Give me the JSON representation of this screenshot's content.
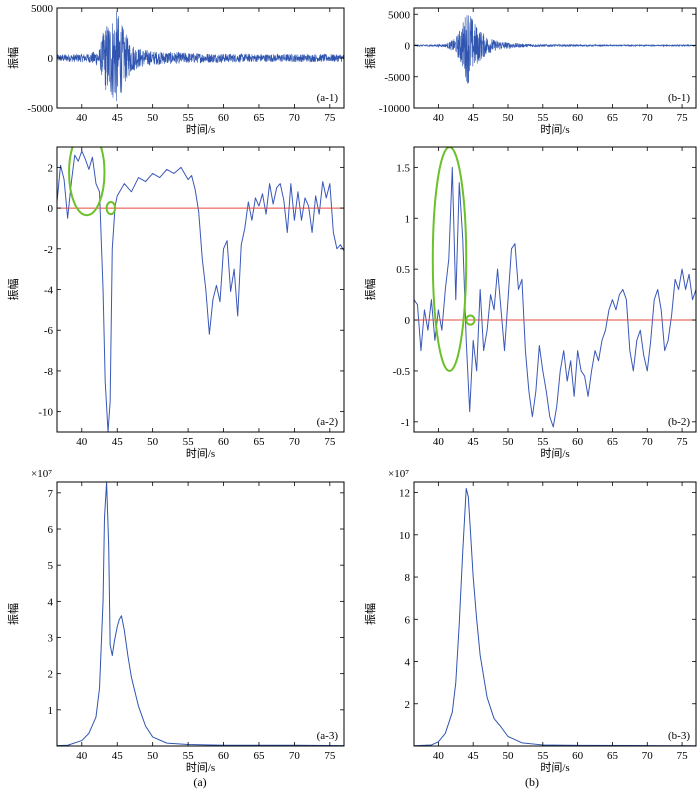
{
  "chart_data": [
    {
      "id": "a1",
      "type": "line",
      "panel_label": "(a-1)",
      "xlabel": "时间/s",
      "ylabel": "振幅",
      "xlim": [
        36.5,
        77
      ],
      "ylim": [
        -5000,
        5000
      ],
      "xticks": [
        40,
        45,
        50,
        55,
        60,
        65,
        70,
        75
      ],
      "yticks": [
        5000,
        0,
        -5000
      ],
      "series": [
        {
          "kind": "seismogram",
          "color": "#2f55b0",
          "envelope": {
            "x": [
              36.5,
              41,
              42.5,
              43.2,
              44,
              45,
              46,
              47,
              48,
              50,
              53,
              56,
              60,
              65,
              70,
              77
            ],
            "amp": [
              350,
              450,
              900,
              3200,
              4000,
              4800,
              2700,
              1500,
              1000,
              700,
              600,
              500,
              450,
              400,
              400,
              380
            ]
          }
        }
      ]
    },
    {
      "id": "b1",
      "type": "line",
      "panel_label": "(b-1)",
      "xlabel": "时间/s",
      "ylabel": "振幅",
      "xlim": [
        36.5,
        77
      ],
      "ylim": [
        -10000,
        6000
      ],
      "xticks": [
        40,
        45,
        50,
        55,
        60,
        65,
        70,
        75
      ],
      "yticks": [
        5000,
        0,
        -5000,
        -10000
      ],
      "series": [
        {
          "kind": "seismogram",
          "color": "#2f55b0",
          "envelope": {
            "x": [
              36.5,
              41,
              42.5,
              43.5,
              44.3,
              45,
              46,
              47,
              48,
              50,
              52,
              55,
              60,
              65,
              77
            ],
            "amp": [
              100,
              250,
              1200,
              3800,
              6500,
              4000,
              2500,
              1500,
              900,
              500,
              300,
              200,
              150,
              120,
              100
            ]
          }
        }
      ]
    },
    {
      "id": "a2",
      "type": "line",
      "panel_label": "(a-2)",
      "xlabel": "时间/s",
      "ylabel": "振幅",
      "xlim": [
        36.5,
        77
      ],
      "ylim": [
        -11,
        3
      ],
      "xticks": [
        40,
        45,
        50,
        55,
        60,
        65,
        70,
        75
      ],
      "yticks": [
        2,
        0,
        -2,
        -4,
        -6,
        -8,
        -10
      ],
      "series": [
        {
          "color": "#3a58b8",
          "x": [
            36.5,
            37,
            37.5,
            38,
            38.5,
            39,
            39.5,
            40,
            40.5,
            41,
            41.5,
            42,
            42.5,
            43,
            43.3,
            43.7,
            44,
            44.3,
            44.7,
            45,
            46,
            47,
            48,
            49,
            50,
            51,
            52,
            53,
            54,
            55,
            55.5,
            56,
            56.5,
            57,
            57.5,
            58,
            58.5,
            59,
            59.5,
            60,
            60.5,
            61,
            61.5,
            62,
            62.5,
            63,
            63.5,
            64,
            64.5,
            65,
            65.5,
            66,
            66.5,
            67,
            67.5,
            68,
            68.5,
            69,
            69.5,
            70,
            70.5,
            71,
            71.5,
            72,
            72.5,
            73,
            73.5,
            74,
            74.5,
            75,
            75.5,
            76,
            76.5,
            77
          ],
          "y": [
            0.3,
            2.1,
            1.4,
            -0.5,
            1.2,
            2.6,
            2.3,
            2.8,
            2.4,
            1.9,
            2.5,
            1.2,
            0.8,
            -4,
            -8.5,
            -11,
            -9.5,
            -2,
            0.1,
            0.6,
            1.2,
            0.8,
            1.5,
            1.3,
            1.7,
            1.5,
            1.9,
            1.7,
            2,
            1.4,
            1.6,
            0.9,
            -0.2,
            -2.5,
            -4,
            -6.2,
            -4.5,
            -3.8,
            -4.6,
            -2,
            -1.6,
            -4.1,
            -3,
            -5.3,
            -1.8,
            -1,
            0.3,
            -0.6,
            0.5,
            0.1,
            0.7,
            -0.3,
            1.2,
            0.2,
            1,
            1.2,
            0.4,
            -1.2,
            1.2,
            -0.6,
            0.8,
            -0.6,
            0.5,
            0.1,
            -1.2,
            0.6,
            -0.3,
            1.3,
            0.5,
            1.2,
            -1.2,
            -2,
            -1.8,
            -2.1
          ]
        },
        {
          "kind": "reference_line",
          "y": 0,
          "color": "#e44a3e"
        }
      ],
      "annotations": [
        {
          "shape": "ellipse",
          "cx": 40.7,
          "cy": 1.75,
          "rx": 2.5,
          "ry": 2.1,
          "color": "#6cc02a"
        },
        {
          "shape": "circle",
          "cx": 44.1,
          "cy": 0,
          "rx": 0.6,
          "ry": 0.3,
          "color": "#6cc02a"
        }
      ]
    },
    {
      "id": "b2",
      "type": "line",
      "panel_label": "(b-2)",
      "xlabel": "时间/s",
      "ylabel": "振幅",
      "xlim": [
        36.5,
        77
      ],
      "ylim": [
        -1.1,
        1.7
      ],
      "xticks": [
        40,
        45,
        50,
        55,
        60,
        65,
        70,
        75
      ],
      "yticks": [
        1.5,
        1,
        0.5,
        0,
        -0.5,
        -1
      ],
      "series": [
        {
          "color": "#3a58b8",
          "x": [
            36.5,
            37,
            37.5,
            38,
            38.5,
            39,
            39.5,
            40,
            40.5,
            41,
            41.5,
            42,
            42.5,
            43,
            43.5,
            44,
            44.5,
            45,
            45.5,
            46,
            46.5,
            47,
            47.5,
            48,
            48.5,
            49,
            49.5,
            50,
            50.5,
            51,
            51.5,
            52,
            52.5,
            53,
            53.5,
            54,
            54.5,
            55,
            55.5,
            56,
            56.5,
            57,
            57.5,
            58,
            58.5,
            59,
            59.5,
            60,
            60.5,
            61,
            61.5,
            62,
            62.5,
            63,
            63.5,
            64,
            64.5,
            65,
            65.5,
            66,
            66.5,
            67,
            67.5,
            68,
            68.5,
            69,
            69.5,
            70,
            70.5,
            71,
            71.5,
            72,
            72.5,
            73,
            73.5,
            74,
            74.5,
            75,
            75.5,
            76,
            76.5,
            77
          ],
          "y": [
            0.2,
            0.15,
            -0.3,
            0.1,
            -0.1,
            0.2,
            -0.2,
            0.1,
            -0.1,
            0.3,
            0.6,
            1.5,
            0.2,
            1.35,
            0.8,
            -0.2,
            -0.9,
            -0.2,
            -0.5,
            0.3,
            -0.3,
            -0.1,
            0.25,
            0.1,
            0.5,
            0.1,
            -0.3,
            0.2,
            0.7,
            0.75,
            0.3,
            0.4,
            -0.3,
            -0.7,
            -0.95,
            -0.7,
            -0.25,
            -0.5,
            -0.7,
            -0.95,
            -1.05,
            -0.85,
            -0.5,
            -0.3,
            -0.6,
            -0.4,
            -0.75,
            -0.3,
            -0.5,
            -0.55,
            -0.75,
            -0.5,
            -0.3,
            -0.4,
            -0.2,
            -0.1,
            0.1,
            0.2,
            0.1,
            0.25,
            0.3,
            0.2,
            -0.3,
            -0.5,
            -0.2,
            -0.1,
            -0.35,
            -0.5,
            -0.2,
            0.2,
            0.3,
            0.1,
            -0.3,
            -0.2,
            0.05,
            0.4,
            0.3,
            0.5,
            0.3,
            0.45,
            0.2,
            0.3
          ]
        },
        {
          "kind": "reference_line",
          "y": 0,
          "color": "#e44a3e"
        }
      ],
      "annotations": [
        {
          "shape": "ellipse",
          "cx": 41.6,
          "cy": 0.6,
          "rx": 2.4,
          "ry": 1.1,
          "color": "#6cc02a"
        },
        {
          "shape": "circle",
          "cx": 44.6,
          "cy": 0,
          "rx": 0.6,
          "ry": 0.045,
          "color": "#6cc02a"
        }
      ]
    },
    {
      "id": "a3",
      "type": "line",
      "panel_label": "(a-3)",
      "xlabel": "时间/s",
      "ylabel": "振幅",
      "scale_label": "×10⁷",
      "xlim": [
        36.5,
        77
      ],
      "ylim": [
        0,
        7.3
      ],
      "xticks": [
        40,
        45,
        50,
        55,
        60,
        65,
        70,
        75
      ],
      "yticks": [
        7,
        6,
        5,
        4,
        3,
        2,
        1
      ],
      "series": [
        {
          "color": "#2f55b0",
          "x": [
            36.5,
            38,
            40,
            41,
            42,
            42.5,
            43,
            43.2,
            43.5,
            43.8,
            44,
            44.3,
            44.6,
            45,
            45.3,
            45.6,
            46,
            46.5,
            47,
            48,
            49,
            50,
            52,
            55,
            60,
            70,
            77
          ],
          "y": [
            0.01,
            0.02,
            0.15,
            0.35,
            0.8,
            1.6,
            4,
            6.3,
            7.3,
            5.5,
            2.8,
            2.5,
            2.9,
            3.3,
            3.5,
            3.6,
            3.2,
            2.5,
            1.9,
            1.1,
            0.55,
            0.25,
            0.08,
            0.04,
            0.02,
            0.02,
            0.01
          ]
        }
      ]
    },
    {
      "id": "b3",
      "type": "line",
      "panel_label": "(b-3)",
      "xlabel": "时间/s",
      "ylabel": "振幅",
      "scale_label": "×10⁷",
      "xlim": [
        36.5,
        77
      ],
      "ylim": [
        0,
        12.5
      ],
      "xticks": [
        40,
        45,
        50,
        55,
        60,
        65,
        70,
        75
      ],
      "yticks": [
        12,
        10,
        8,
        6,
        4,
        2
      ],
      "series": [
        {
          "color": "#2f55b0",
          "x": [
            36.5,
            39,
            40,
            41,
            42,
            42.5,
            43,
            43.5,
            44,
            44.3,
            44.6,
            45,
            45.5,
            46,
            47,
            48,
            49,
            50,
            52,
            55,
            60,
            70,
            77
          ],
          "y": [
            0.01,
            0.05,
            0.2,
            0.6,
            1.6,
            3,
            5.8,
            9.2,
            12.2,
            11.8,
            10.2,
            8,
            6,
            4.3,
            2.3,
            1.3,
            0.9,
            0.45,
            0.15,
            0.05,
            0.03,
            0.02,
            0.01
          ]
        }
      ]
    }
  ],
  "captions": {
    "a": "(a)",
    "b": "(b)"
  }
}
